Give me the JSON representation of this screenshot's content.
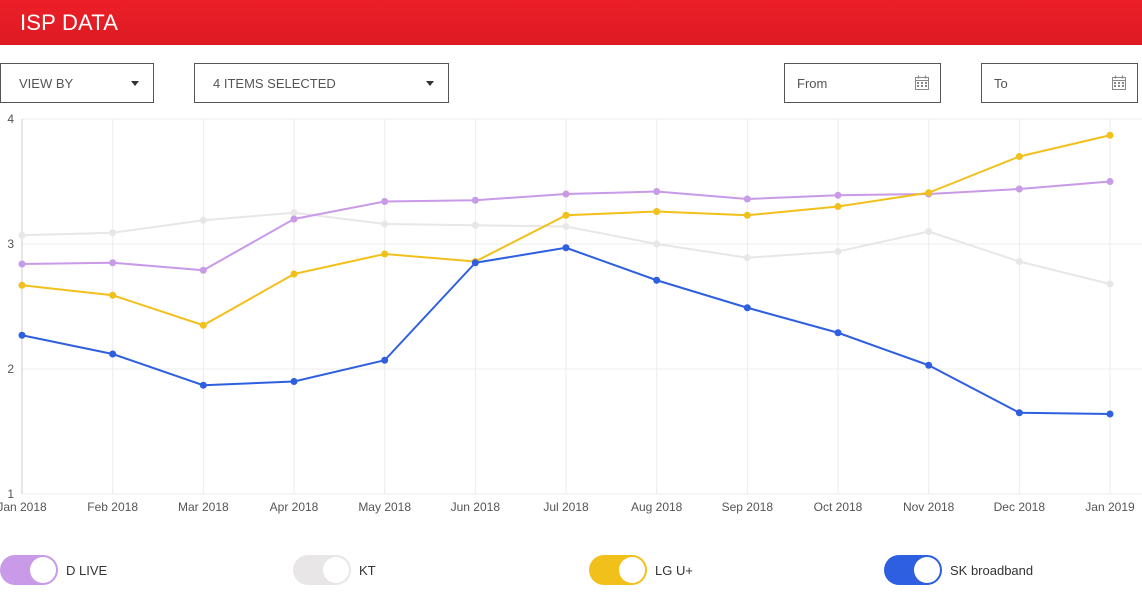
{
  "header": {
    "title": "ISP DATA"
  },
  "controls": {
    "view_by": "VIEW BY",
    "items_selected": "4 ITEMS SELECTED",
    "from_placeholder": "From",
    "to_placeholder": "To"
  },
  "colors": {
    "brand": "#e31b23",
    "grid": "#ececec",
    "axis": "#cccccc"
  },
  "chart_data": {
    "type": "line",
    "title": "",
    "xlabel": "",
    "ylabel": "",
    "ylim": [
      1,
      4
    ],
    "yticks": [
      "1",
      "2",
      "3",
      "4"
    ],
    "categories": [
      "Jan 2018",
      "Feb 2018",
      "Mar 2018",
      "Apr 2018",
      "May 2018",
      "Jun 2018",
      "Jul 2018",
      "Aug 2018",
      "Sep 2018",
      "Oct 2018",
      "Nov 2018",
      "Dec 2018",
      "Jan 2019"
    ],
    "grid": true,
    "legend_position": "bottom",
    "series": [
      {
        "name": "KT",
        "color": "#e8e6e6",
        "values": [
          3.07,
          3.09,
          3.19,
          3.25,
          3.16,
          3.15,
          3.14,
          3.0,
          2.89,
          2.94,
          3.1,
          2.86,
          2.68
        ]
      },
      {
        "name": "D LIVE",
        "color": "#c89ae8",
        "values": [
          2.84,
          2.85,
          2.79,
          3.2,
          3.34,
          3.35,
          3.4,
          3.42,
          3.36,
          3.39,
          3.4,
          3.44,
          3.5
        ]
      },
      {
        "name": "LG U+",
        "color": "#f2c01b",
        "values": [
          2.67,
          2.59,
          2.35,
          2.76,
          2.92,
          2.86,
          3.23,
          3.26,
          3.23,
          3.3,
          3.41,
          3.7,
          3.87
        ]
      },
      {
        "name": "SK broadband",
        "color": "#2e5fe0",
        "values": [
          2.27,
          2.12,
          1.87,
          1.9,
          2.07,
          2.85,
          2.97,
          2.71,
          2.49,
          2.29,
          2.03,
          1.65,
          1.64
        ]
      }
    ]
  },
  "legend": [
    {
      "label": "D LIVE",
      "color": "#c89ae8"
    },
    {
      "label": "KT",
      "color": "#e8e6e6"
    },
    {
      "label": "LG U+",
      "color": "#f2c01b"
    },
    {
      "label": "SK broadband",
      "color": "#2e5fe0"
    }
  ]
}
